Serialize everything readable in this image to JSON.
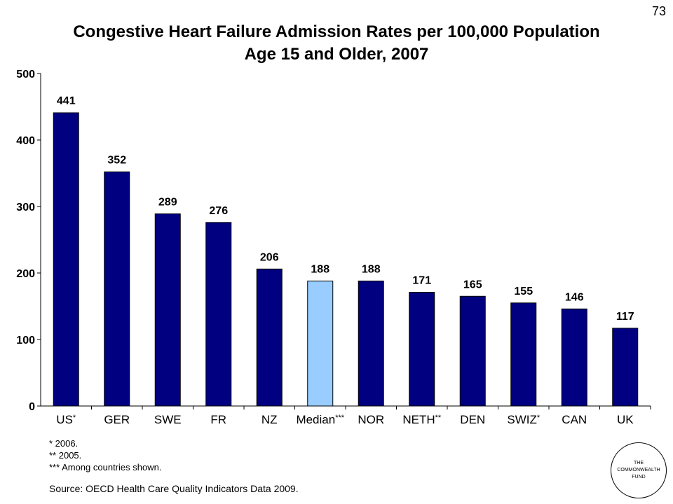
{
  "page_number": "73",
  "title_line1": "Congestive Heart Failure Admission Rates per 100,000 Population",
  "title_line2": "Age 15 and Older, 2007",
  "footnotes": [
    "* 2006.",
    "** 2005.",
    "*** Among countries shown."
  ],
  "source": "Source: OECD Health Care Quality Indicators Data 2009.",
  "logo_lines": [
    "THE",
    "COMMONWEALTH",
    "FUND"
  ],
  "colors": {
    "bar": "#000080",
    "highlight_bar": "#99CCFF",
    "bar_outline": "#000000"
  },
  "chart_data": {
    "type": "bar",
    "title": "Congestive Heart Failure Admission Rates per 100,000 Population Age 15 and Older, 2007",
    "categories": [
      "US*",
      "GER",
      "SWE",
      "FR",
      "NZ",
      "Median***",
      "NOR",
      "NETH**",
      "DEN",
      "SWIZ*",
      "CAN",
      "UK"
    ],
    "values": [
      441,
      352,
      289,
      276,
      206,
      188,
      188,
      171,
      165,
      155,
      146,
      117
    ],
    "data_labels": [
      "441",
      "352",
      "289",
      "276",
      "206",
      "188",
      "188",
      "171",
      "165",
      "155",
      "146",
      "117"
    ],
    "highlight_category": "Median***",
    "xlabel": "",
    "ylabel": "",
    "ylim": [
      0,
      500
    ],
    "yticks": [
      0,
      100,
      200,
      300,
      400,
      500
    ],
    "grid": false,
    "legend": "none"
  }
}
